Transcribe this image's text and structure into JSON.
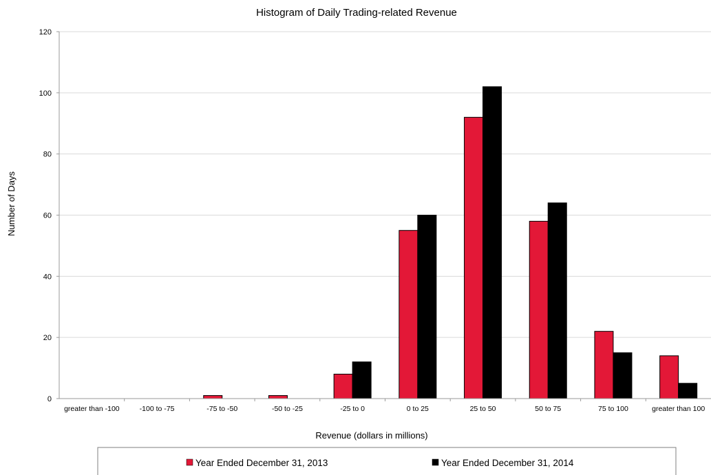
{
  "chart_data": {
    "type": "bar",
    "title": "Histogram of Daily Trading-related Revenue",
    "xlabel": "Revenue (dollars in millions)",
    "ylabel": "Number of Days",
    "ylim": [
      0,
      120
    ],
    "yticks": [
      0,
      20,
      40,
      60,
      80,
      100,
      120
    ],
    "grid": true,
    "legend_position": "bottom",
    "categories": [
      "greater than -100",
      "-100 to -75",
      "-75 to -50",
      "-50 to -25",
      "-25 to 0",
      "0 to 25",
      "25 to 50",
      "50 to 75",
      "75 to 100",
      "greater than 100"
    ],
    "series": [
      {
        "name": "Year Ended December 31, 2013",
        "color": "#e31837",
        "values": [
          0,
          0,
          1,
          1,
          8,
          55,
          92,
          58,
          22,
          14
        ]
      },
      {
        "name": "Year Ended December 31, 2014",
        "color": "#000000",
        "values": [
          0,
          0,
          0,
          0,
          12,
          60,
          102,
          64,
          15,
          5
        ]
      }
    ]
  }
}
